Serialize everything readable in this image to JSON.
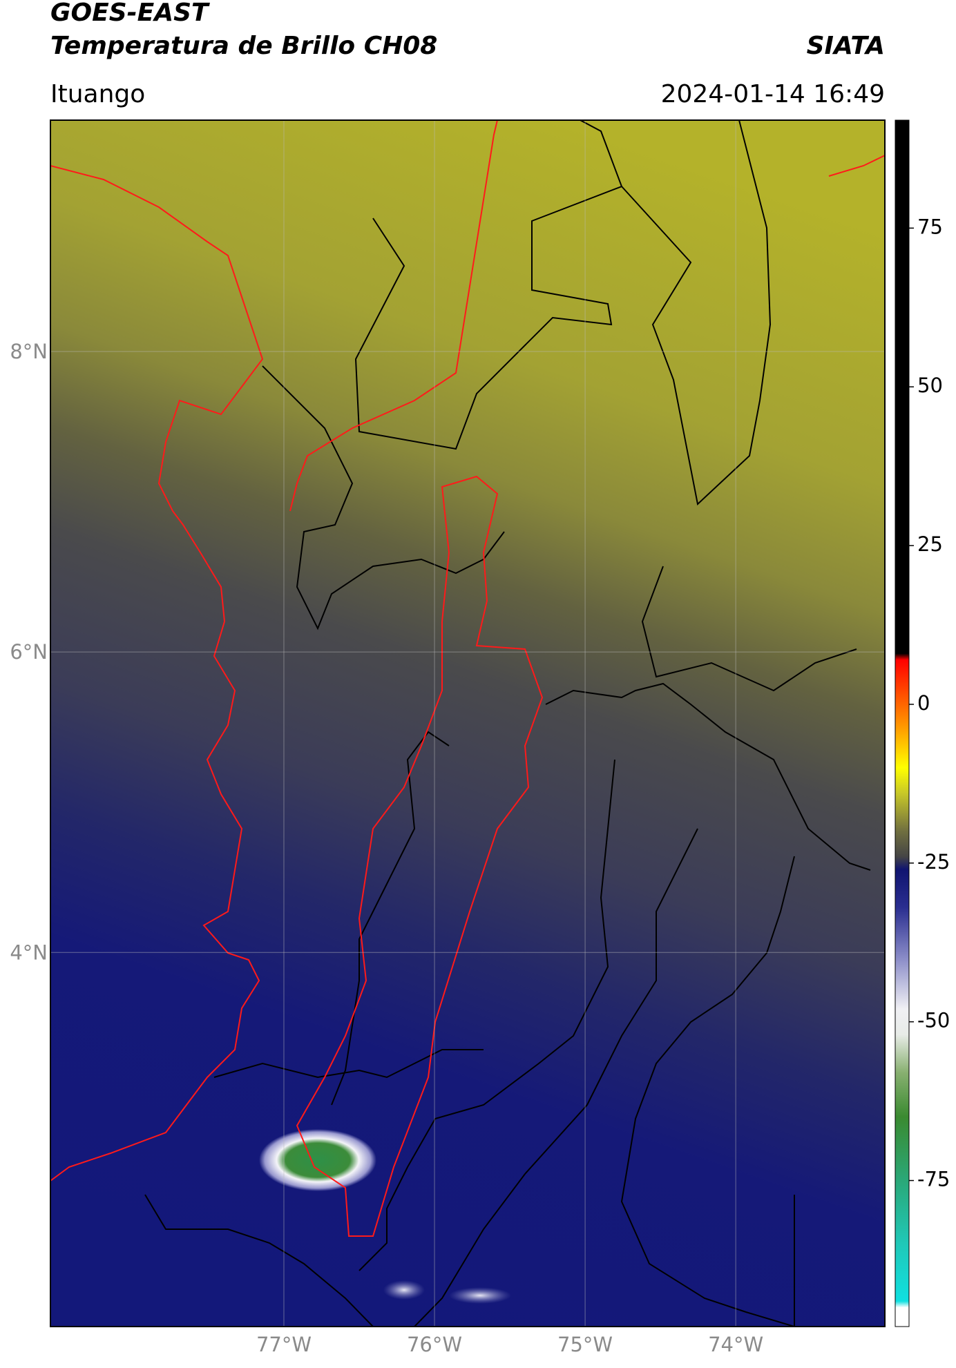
{
  "chart_data": {
    "type": "map",
    "title": "GOES-EAST",
    "subtitle": "Temperatura de Brillo CH08",
    "source": "SIATA",
    "location": "Ituango",
    "datetime": "2024-01-14 16:49",
    "xlim": [
      -78.55,
      -73.01
    ],
    "ylim": [
      1.51,
      9.54
    ],
    "xticks": [
      {
        "value": -77,
        "label": "77°W"
      },
      {
        "value": -76,
        "label": "76°W"
      },
      {
        "value": -75,
        "label": "75°W"
      },
      {
        "value": -74,
        "label": "74°W"
      }
    ],
    "yticks": [
      {
        "value": 8,
        "label": "8°N"
      },
      {
        "value": 6,
        "label": "6°N"
      },
      {
        "value": 4,
        "label": "4°N"
      }
    ],
    "grid": true,
    "colorbar": {
      "lim": [
        -98,
        92
      ],
      "ticks": [
        75,
        50,
        25,
        0,
        -25,
        -50,
        -75
      ],
      "colorscale": [
        [
          -98,
          "#ffffff"
        ],
        [
          -95,
          "#ffffff"
        ],
        [
          -94,
          "#10e0e0"
        ],
        [
          -85,
          "#20c8b8"
        ],
        [
          -75,
          "#2aa878"
        ],
        [
          -65,
          "#3a8a30"
        ],
        [
          -58,
          "#88b070"
        ],
        [
          -52,
          "#e8ece8"
        ],
        [
          -48,
          "#f0f0f4"
        ],
        [
          -40,
          "#8a8cc8"
        ],
        [
          -32,
          "#2a2e90"
        ],
        [
          -26,
          "#101470"
        ],
        [
          -24,
          "#454545"
        ],
        [
          -20,
          "#706f40"
        ],
        [
          -14,
          "#c8c828"
        ],
        [
          -10,
          "#ffff00"
        ],
        [
          -4,
          "#ffa000"
        ],
        [
          7,
          "#ff0000"
        ],
        [
          8,
          "#000000"
        ],
        [
          92,
          "#000000"
        ]
      ]
    }
  }
}
